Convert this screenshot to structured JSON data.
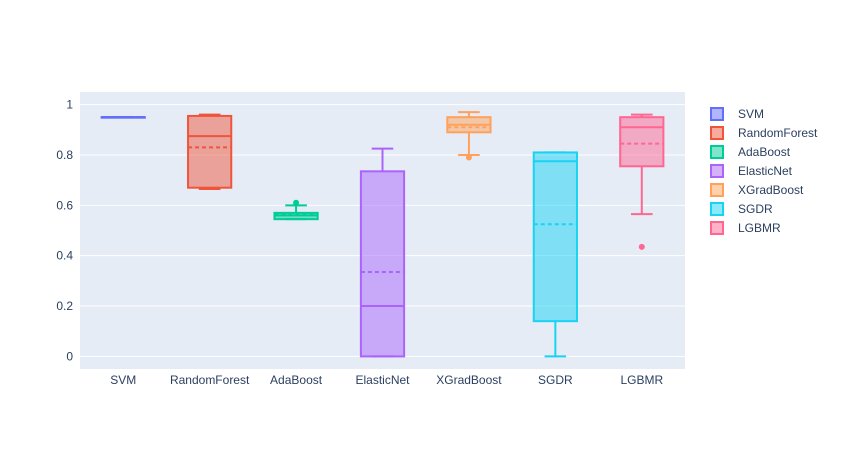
{
  "chart_data": {
    "type": "box",
    "title": "",
    "xlabel": "",
    "ylabel": "",
    "ylim": [
      -0.05,
      1.05
    ],
    "yticks": [
      "0",
      "0.2",
      "0.4",
      "0.6",
      "0.8",
      "1"
    ],
    "categories": [
      "SVM",
      "RandomForest",
      "AdaBoost",
      "ElasticNet",
      "XGradBoost",
      "SGDR",
      "LGBMR"
    ],
    "legend_position": "top-right",
    "series": [
      {
        "name": "SVM",
        "color": "#636efa",
        "min": 0.95,
        "q1": 0.95,
        "median": 0.95,
        "q3": 0.95,
        "max": 0.95,
        "mean": 0.95,
        "outliers": []
      },
      {
        "name": "RandomForest",
        "color": "#ef553b",
        "min": 0.665,
        "q1": 0.67,
        "median": 0.875,
        "q3": 0.955,
        "max": 0.96,
        "mean": 0.83,
        "outliers": []
      },
      {
        "name": "AdaBoost",
        "color": "#00cc96",
        "min": 0.545,
        "q1": 0.545,
        "median": 0.56,
        "q3": 0.57,
        "max": 0.6,
        "mean": 0.562,
        "outliers": [
          0.61
        ]
      },
      {
        "name": "ElasticNet",
        "color": "#ab63fa",
        "min": 0.0,
        "q1": 0.0,
        "median": 0.2,
        "q3": 0.735,
        "max": 0.825,
        "mean": 0.335,
        "outliers": []
      },
      {
        "name": "XGradBoost",
        "color": "#ffa15a",
        "min": 0.8,
        "q1": 0.89,
        "median": 0.92,
        "q3": 0.95,
        "max": 0.97,
        "mean": 0.91,
        "outliers": [
          0.79
        ]
      },
      {
        "name": "SGDR",
        "color": "#19d3f3",
        "min": 0.0,
        "q1": 0.14,
        "median": 0.775,
        "q3": 0.81,
        "max": 0.81,
        "mean": 0.525,
        "outliers": []
      },
      {
        "name": "LGBMR",
        "color": "#ff6692",
        "min": 0.565,
        "q1": 0.755,
        "median": 0.91,
        "q3": 0.95,
        "max": 0.96,
        "mean": 0.845,
        "outliers": [
          0.435
        ]
      }
    ]
  }
}
